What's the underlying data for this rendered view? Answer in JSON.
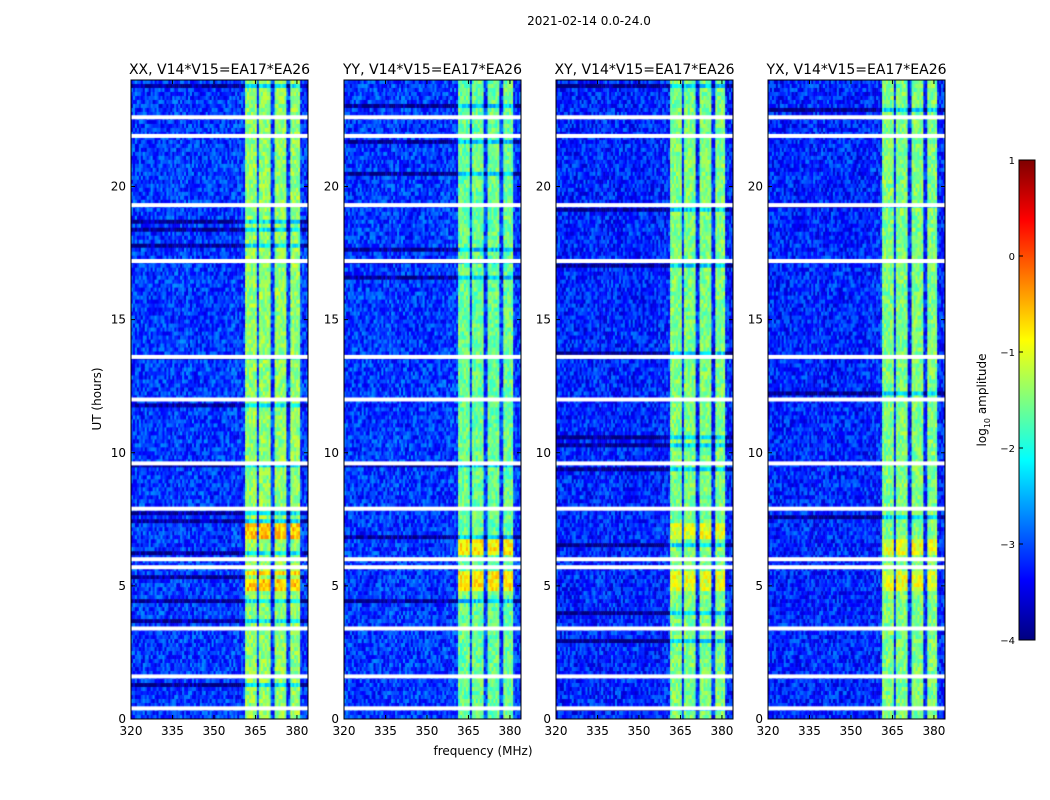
{
  "figure": {
    "suptitle": "2021-02-14 0.0-24.0",
    "xlabel": "frequency (MHz)",
    "ylabel": "UT (hours)",
    "colorbar_label": "log10 amplitude",
    "colorbar_label_base": "log",
    "colorbar_label_sub": "10",
    "colorbar_label_rest": " amplitude",
    "cmap": [
      "#00007f",
      "#0000ff",
      "#007fff",
      "#00ffff",
      "#7fff7f",
      "#ffff00",
      "#ff7f00",
      "#ff0000",
      "#7f0000"
    ],
    "missing_color": "#ffffff"
  },
  "chart_data": [
    {
      "type": "heatmap",
      "title": "XX, V14*V15=EA17*EA26",
      "x": {
        "label": "frequency (MHz)",
        "range": [
          320,
          384
        ],
        "ticks": [
          320,
          335,
          350,
          365,
          380
        ]
      },
      "y": {
        "label": "UT (hours)",
        "range": [
          0,
          24
        ],
        "ticks": [
          0,
          5,
          10,
          15,
          20
        ]
      },
      "value_scale": "log10 amplitude",
      "value_range": [
        -4,
        1
      ],
      "background_level": -3.1,
      "rfi_bands_mhz": [
        [
          361.5,
          365.5
        ],
        [
          366.5,
          370.5
        ],
        [
          372,
          376
        ],
        [
          377.5,
          381.5
        ]
      ],
      "rfi_level": -1.4,
      "strong_rfi_hours": [
        [
          4.8,
          5.6
        ],
        [
          6.8,
          7.3
        ]
      ],
      "strong_level": -0.6,
      "missing_rows_hours": [
        0.4,
        1.6,
        3.4,
        5.7,
        6.0,
        7.9,
        9.6,
        12.0,
        13.6,
        17.2,
        19.3,
        21.9,
        22.6
      ]
    },
    {
      "type": "heatmap",
      "title": "YY, V14*V15=EA17*EA26",
      "x": {
        "label": "frequency (MHz)",
        "range": [
          320,
          384
        ],
        "ticks": [
          320,
          335,
          350,
          365,
          380
        ]
      },
      "y": {
        "label": "UT (hours)",
        "range": [
          0,
          24
        ],
        "ticks": [
          0,
          5,
          10,
          15,
          20
        ]
      },
      "value_scale": "log10 amplitude",
      "value_range": [
        -4,
        1
      ],
      "background_level": -3.1,
      "rfi_bands_mhz": [
        [
          361.5,
          365.5
        ],
        [
          366.5,
          370.5
        ],
        [
          372,
          376
        ],
        [
          377.5,
          381.5
        ]
      ],
      "rfi_level": -1.6,
      "strong_rfi_hours": [
        [
          4.8,
          5.6
        ],
        [
          6.2,
          6.8
        ]
      ],
      "strong_level": -0.8,
      "missing_rows_hours": [
        0.4,
        1.6,
        3.4,
        5.7,
        6.0,
        7.9,
        9.6,
        12.0,
        13.6,
        17.2,
        19.3,
        21.9,
        22.6
      ]
    },
    {
      "type": "heatmap",
      "title": "XY, V14*V15=EA17*EA26",
      "x": {
        "label": "frequency (MHz)",
        "range": [
          320,
          384
        ],
        "ticks": [
          320,
          335,
          350,
          365,
          380
        ]
      },
      "y": {
        "label": "UT (hours)",
        "range": [
          0,
          24
        ],
        "ticks": [
          0,
          5,
          10,
          15,
          20
        ]
      },
      "value_scale": "log10 amplitude",
      "value_range": [
        -4,
        1
      ],
      "background_level": -3.2,
      "rfi_bands_mhz": [
        [
          361.5,
          365.5
        ],
        [
          366.5,
          370.5
        ],
        [
          372,
          376
        ],
        [
          377.5,
          381.5
        ]
      ],
      "rfi_level": -1.5,
      "strong_rfi_hours": [
        [
          4.8,
          5.6
        ],
        [
          6.8,
          7.3
        ]
      ],
      "strong_level": -1.0,
      "missing_rows_hours": [
        0.4,
        1.6,
        3.4,
        5.7,
        6.0,
        7.9,
        9.6,
        12.0,
        13.6,
        17.2,
        19.3,
        21.9,
        22.6
      ]
    },
    {
      "type": "heatmap",
      "title": "YX, V14*V15=EA17*EA26",
      "x": {
        "label": "frequency (MHz)",
        "range": [
          320,
          384
        ],
        "ticks": [
          320,
          335,
          350,
          365,
          380
        ]
      },
      "y": {
        "label": "UT (hours)",
        "range": [
          0,
          24
        ],
        "ticks": [
          0,
          5,
          10,
          15,
          20
        ]
      },
      "value_scale": "log10 amplitude",
      "value_range": [
        -4,
        1
      ],
      "background_level": -3.2,
      "rfi_bands_mhz": [
        [
          361.5,
          365.5
        ],
        [
          366.5,
          370.5
        ],
        [
          372,
          376
        ],
        [
          377.5,
          381.5
        ]
      ],
      "rfi_level": -1.5,
      "strong_rfi_hours": [
        [
          4.8,
          5.6
        ],
        [
          6.2,
          6.8
        ]
      ],
      "strong_level": -1.0,
      "missing_rows_hours": [
        0.4,
        1.6,
        3.4,
        5.7,
        6.0,
        7.9,
        9.6,
        12.0,
        13.6,
        17.2,
        19.3,
        21.9,
        22.6
      ]
    }
  ],
  "colorbar": {
    "ticks": [
      1,
      0,
      -1,
      -2,
      -3,
      -4
    ],
    "tick_labels": [
      "1",
      "0",
      "−1",
      "−2",
      "−3",
      "−4"
    ],
    "range": [
      -4,
      1
    ]
  }
}
